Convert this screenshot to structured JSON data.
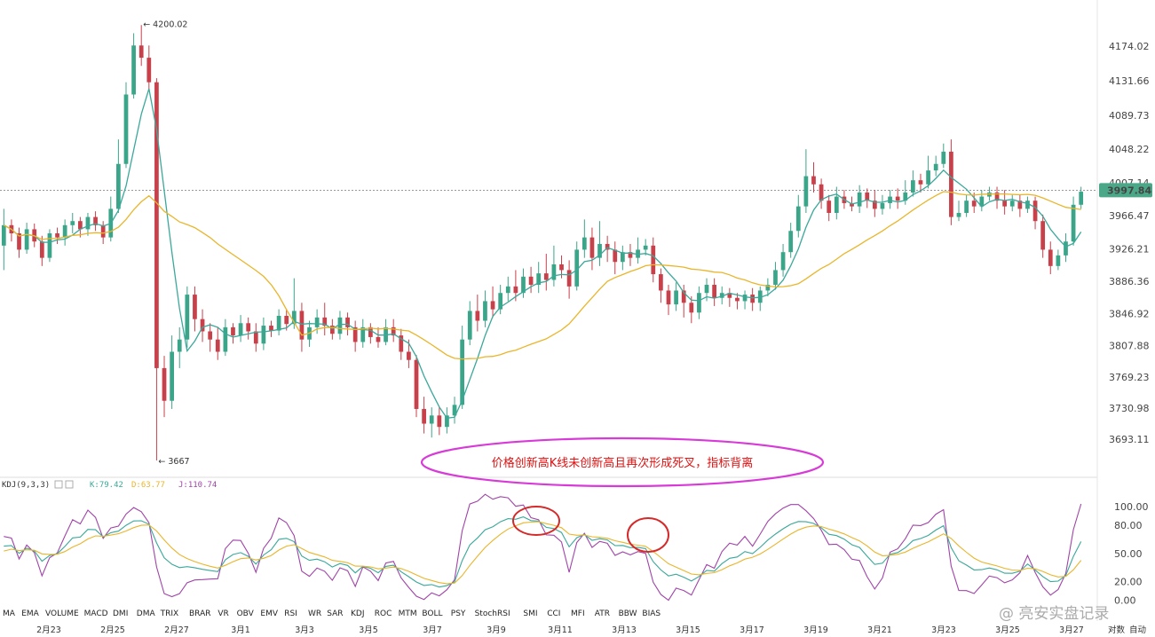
{
  "chart_data": [
    {
      "type": "candlestick",
      "panel": "price",
      "price_axis": [
        "4174.02",
        "4131.66",
        "4089.73",
        "4048.22",
        "4007.14",
        "3966.47",
        "3926.21",
        "3886.36",
        "3846.92",
        "3807.88",
        "3769.23",
        "3730.98",
        "3693.11"
      ],
      "ylim": [
        3655,
        4222
      ],
      "current_price": "3997.84",
      "high_label": "4200.02",
      "low_label": "3667",
      "colors": {
        "up": "#3ba58a",
        "down": "#c8404a",
        "ma_fast": "#3aa89a",
        "ma_slow": "#e9b52a",
        "price_line": "#777777",
        "price_tag": "#4aa889"
      },
      "candles": [
        [
          3930,
          3955,
          3900,
          3975
        ],
        [
          3955,
          3945,
          3935,
          3962
        ],
        [
          3945,
          3925,
          3915,
          3952
        ],
        [
          3925,
          3950,
          3920,
          3958
        ],
        [
          3950,
          3935,
          3928,
          3957
        ],
        [
          3935,
          3915,
          3905,
          3942
        ],
        [
          3915,
          3945,
          3910,
          3950
        ],
        [
          3945,
          3940,
          3932,
          3952
        ],
        [
          3940,
          3955,
          3930,
          3962
        ],
        [
          3955,
          3960,
          3945,
          3970
        ],
        [
          3960,
          3950,
          3940,
          3965
        ],
        [
          3950,
          3965,
          3942,
          3970
        ],
        [
          3965,
          3955,
          3948,
          3972
        ],
        [
          3955,
          3940,
          3932,
          3960
        ],
        [
          3940,
          3975,
          3935,
          3990
        ],
        [
          3975,
          4030,
          3970,
          4060
        ],
        [
          4030,
          4115,
          4025,
          4130
        ],
        [
          4115,
          4175,
          4110,
          4190
        ],
        [
          4175,
          4160,
          4150,
          4200
        ],
        [
          4160,
          4130,
          4120,
          4175
        ],
        [
          4130,
          3780,
          3667,
          4135
        ],
        [
          3780,
          3740,
          3720,
          3795
        ],
        [
          3740,
          3800,
          3730,
          3820
        ],
        [
          3800,
          3815,
          3780,
          3830
        ],
        [
          3815,
          3870,
          3805,
          3880
        ],
        [
          3870,
          3840,
          3825,
          3880
        ],
        [
          3840,
          3825,
          3812,
          3852
        ],
        [
          3825,
          3815,
          3800,
          3835
        ],
        [
          3815,
          3800,
          3790,
          3830
        ],
        [
          3800,
          3830,
          3795,
          3840
        ],
        [
          3830,
          3820,
          3810,
          3835
        ],
        [
          3820,
          3835,
          3812,
          3845
        ],
        [
          3835,
          3825,
          3815,
          3842
        ],
        [
          3825,
          3810,
          3800,
          3835
        ],
        [
          3810,
          3832,
          3802,
          3842
        ],
        [
          3832,
          3826,
          3818,
          3838
        ],
        [
          3826,
          3844,
          3820,
          3852
        ],
        [
          3844,
          3834,
          3826,
          3852
        ],
        [
          3834,
          3850,
          3828,
          3890
        ],
        [
          3850,
          3815,
          3800,
          3860
        ],
        [
          3815,
          3830,
          3806,
          3838
        ],
        [
          3830,
          3842,
          3822,
          3852
        ],
        [
          3842,
          3832,
          3820,
          3860
        ],
        [
          3832,
          3822,
          3815,
          3840
        ],
        [
          3822,
          3842,
          3815,
          3850
        ],
        [
          3842,
          3830,
          3820,
          3848
        ],
        [
          3830,
          3812,
          3800,
          3838
        ],
        [
          3812,
          3830,
          3805,
          3840
        ],
        [
          3830,
          3818,
          3810,
          3835
        ],
        [
          3818,
          3812,
          3805,
          3830
        ],
        [
          3812,
          3830,
          3808,
          3840
        ],
        [
          3830,
          3820,
          3812,
          3840
        ],
        [
          3820,
          3800,
          3790,
          3828
        ],
        [
          3800,
          3790,
          3780,
          3815
        ],
        [
          3790,
          3730,
          3720,
          3796
        ],
        [
          3730,
          3712,
          3700,
          3745
        ],
        [
          3712,
          3722,
          3695,
          3732
        ],
        [
          3722,
          3708,
          3698,
          3732
        ],
        [
          3708,
          3722,
          3700,
          3732
        ],
        [
          3722,
          3735,
          3712,
          3745
        ],
        [
          3735,
          3815,
          3730,
          3832
        ],
        [
          3815,
          3850,
          3808,
          3862
        ],
        [
          3850,
          3838,
          3825,
          3870
        ],
        [
          3838,
          3862,
          3830,
          3875
        ],
        [
          3862,
          3852,
          3842,
          3880
        ],
        [
          3852,
          3872,
          3846,
          3882
        ],
        [
          3872,
          3880,
          3862,
          3892
        ],
        [
          3880,
          3872,
          3862,
          3900
        ],
        [
          3872,
          3892,
          3866,
          3902
        ],
        [
          3892,
          3882,
          3872,
          3904
        ],
        [
          3882,
          3896,
          3872,
          3910
        ],
        [
          3896,
          3888,
          3875,
          3920
        ],
        [
          3888,
          3907,
          3880,
          3930
        ],
        [
          3907,
          3900,
          3890,
          3918
        ],
        [
          3900,
          3880,
          3865,
          3912
        ],
        [
          3880,
          3925,
          3875,
          3935
        ],
        [
          3925,
          3940,
          3915,
          3962
        ],
        [
          3940,
          3915,
          3900,
          3952
        ],
        [
          3915,
          3932,
          3905,
          3960
        ],
        [
          3932,
          3925,
          3910,
          3942
        ],
        [
          3925,
          3910,
          3895,
          3935
        ],
        [
          3910,
          3922,
          3900,
          3930
        ],
        [
          3922,
          3915,
          3905,
          3932
        ],
        [
          3915,
          3925,
          3908,
          3940
        ],
        [
          3925,
          3930,
          3918,
          3938
        ],
        [
          3930,
          3895,
          3885,
          3940
        ],
        [
          3895,
          3875,
          3860,
          3902
        ],
        [
          3875,
          3858,
          3845,
          3882
        ],
        [
          3858,
          3875,
          3850,
          3885
        ],
        [
          3875,
          3860,
          3842,
          3882
        ],
        [
          3860,
          3848,
          3835,
          3868
        ],
        [
          3848,
          3872,
          3840,
          3880
        ],
        [
          3872,
          3882,
          3862,
          3890
        ],
        [
          3882,
          3866,
          3856,
          3890
        ],
        [
          3866,
          3872,
          3858,
          3880
        ],
        [
          3872,
          3866,
          3855,
          3878
        ],
        [
          3866,
          3862,
          3852,
          3872
        ],
        [
          3862,
          3870,
          3852,
          3875
        ],
        [
          3870,
          3860,
          3850,
          3878
        ],
        [
          3860,
          3875,
          3850,
          3880
        ],
        [
          3875,
          3882,
          3868,
          3890
        ],
        [
          3882,
          3900,
          3876,
          3910
        ],
        [
          3900,
          3922,
          3892,
          3932
        ],
        [
          3922,
          3948,
          3915,
          3958
        ],
        [
          3948,
          3978,
          3940,
          3992
        ],
        [
          3978,
          4015,
          3970,
          4048
        ],
        [
          4015,
          4005,
          3995,
          4032
        ],
        [
          4005,
          3985,
          3975,
          4012
        ],
        [
          3985,
          3970,
          3960,
          3992
        ],
        [
          3970,
          3990,
          3962,
          4002
        ],
        [
          3990,
          3982,
          3975,
          3998
        ],
        [
          3982,
          3978,
          3972,
          3990
        ],
        [
          3978,
          3995,
          3970,
          4004
        ],
        [
          3995,
          3985,
          3976,
          4000
        ],
        [
          3985,
          3975,
          3965,
          3998
        ],
        [
          3975,
          3982,
          3968,
          3992
        ],
        [
          3982,
          3990,
          3975,
          3998
        ],
        [
          3990,
          3985,
          3975,
          4000
        ],
        [
          3985,
          3995,
          3980,
          4010
        ],
        [
          3995,
          4010,
          3990,
          4022
        ],
        [
          4010,
          4005,
          3995,
          4018
        ],
        [
          4005,
          4022,
          4000,
          4040
        ],
        [
          4022,
          4030,
          4015,
          4040
        ],
        [
          4030,
          4045,
          4025,
          4055
        ],
        [
          4045,
          3965,
          3955,
          4060
        ],
        [
          3965,
          3970,
          3960,
          3985
        ],
        [
          3970,
          3985,
          3965,
          3992
        ],
        [
          3985,
          3978,
          3970,
          3995
        ],
        [
          3978,
          3990,
          3972,
          3998
        ],
        [
          3990,
          3995,
          3985,
          4002
        ],
        [
          3995,
          3985,
          3975,
          4002
        ],
        [
          3985,
          3978,
          3968,
          3998
        ],
        [
          3978,
          3985,
          3972,
          3992
        ],
        [
          3985,
          3975,
          3965,
          3992
        ],
        [
          3975,
          3985,
          3970,
          3990
        ],
        [
          3985,
          3960,
          3950,
          3990
        ],
        [
          3960,
          3925,
          3915,
          3968
        ],
        [
          3925,
          3905,
          3895,
          3935
        ],
        [
          3905,
          3918,
          3900,
          3925
        ],
        [
          3918,
          3935,
          3910,
          3945
        ],
        [
          3935,
          3980,
          3930,
          3990
        ],
        [
          3980,
          3996,
          3975,
          4002
        ]
      ],
      "kdj_legend": {
        "label": "KDJ(9,3,3)",
        "k": "K:79.42",
        "d": "D:63.77",
        "j": "J:110.74"
      },
      "kdj_axis": [
        "100.00",
        "80.00",
        "50.00",
        "20.00",
        "0.00"
      ],
      "kdj_ylim": [
        -5,
        118
      ],
      "annotation": "价格创新高K线未创新高且再次形成死叉，指标背离",
      "date_labels": [
        "2月23",
        "2月25",
        "2月27",
        "3月1",
        "3月3",
        "3月5",
        "3月7",
        "3月9",
        "3月11",
        "3月13",
        "3月15",
        "3月17",
        "3月19",
        "3月21",
        "3月23",
        "3月25",
        "3月27"
      ]
    }
  ],
  "indicator_bar": [
    "MA",
    "EMA",
    "VOLUME",
    "MACD",
    "DMI",
    "DMA",
    "TRIX",
    "BRAR",
    "VR",
    "OBV",
    "EMV",
    "RSI",
    "WR",
    "SAR",
    "KDJ",
    "ROC",
    "MTM",
    "BOLL",
    "PSY",
    "StochRSI",
    "SMI",
    "CCI",
    "MFI",
    "ATR",
    "BBW",
    "BIAS"
  ],
  "active_indicator": "KDJ",
  "footer": {
    "log_label": "对数",
    "auto_label": "自动"
  },
  "watermark": "@ 亮安实盘记录"
}
